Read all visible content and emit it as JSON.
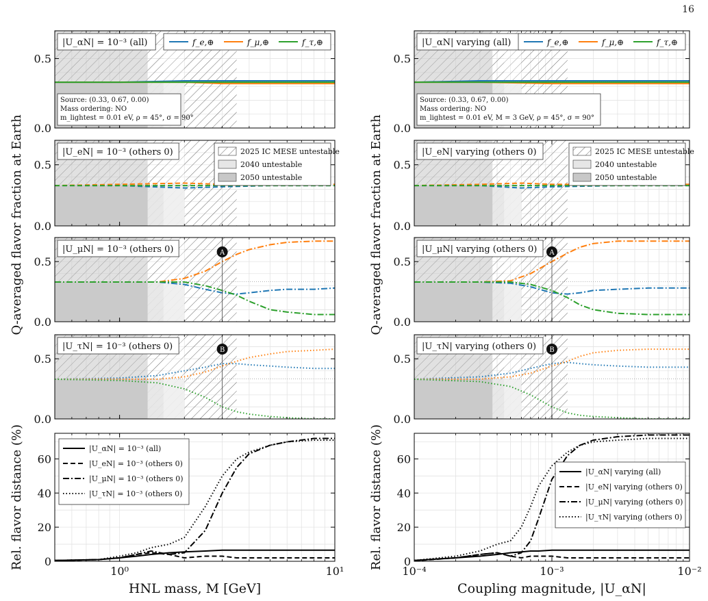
{
  "page_number": "16",
  "colors": {
    "e": "#1f77b4",
    "mu": "#ff7f0e",
    "tau": "#2ca02c",
    "hatch": "#555555",
    "shade2040": "#e6e6e6",
    "shade2050": "#c8c8c8"
  },
  "columns": [
    {
      "ylabel_flavor": "Q-averaged flavor fraction at Earth",
      "ylabel_distance": "Rel. flavor distance (%)",
      "xlabel": "HNL mass, M [GeV]",
      "xscale": "log",
      "xlim": [
        0.5,
        10
      ],
      "xticks": [
        {
          "v": 1,
          "label": "10⁰"
        },
        {
          "v": 10,
          "label": "10¹"
        }
      ],
      "markers": {
        "A": 3.0,
        "B": 3.0
      },
      "source_box": [
        "Source: (0.33, 0.67, 0.00)",
        "Mass ordering: NO",
        "m_lightest = 0.01 eV, ρ = 45°, σ = 90°"
      ],
      "regions": {
        "ic2025": [
          0.5,
          3.5
        ],
        "u2040": [
          0.5,
          2.0
        ],
        "u2050": [
          0.5,
          1.35
        ],
        "light": [
          1.6,
          2.0
        ]
      },
      "panels": [
        {
          "label": "|U_αN| = 10⁻³ (all)",
          "ylim": [
            0,
            0.7
          ],
          "yticks": [
            0.0,
            0.5
          ],
          "style": "solid",
          "chart_data": {
            "type": "line",
            "x": [
              0.5,
              1,
              2,
              3,
              5,
              10
            ],
            "series": [
              {
                "name": "f_e,⊕",
                "values": [
                  0.33,
                  0.33,
                  0.34,
                  0.34,
                  0.34,
                  0.34
                ]
              },
              {
                "name": "f_μ,⊕",
                "values": [
                  0.33,
                  0.33,
                  0.33,
                  0.32,
                  0.32,
                  0.32
                ]
              },
              {
                "name": "f_τ,⊕",
                "values": [
                  0.33,
                  0.33,
                  0.33,
                  0.33,
                  0.33,
                  0.33
                ]
              }
            ]
          }
        },
        {
          "label": "|U_eN| = 10⁻³ (others 0)",
          "ylim": [
            0,
            0.7
          ],
          "yticks": [
            0.0,
            0.5
          ],
          "style": "dashed",
          "chart_data": {
            "type": "line",
            "x": [
              0.5,
              1,
              2,
              3,
              5,
              10
            ],
            "series": [
              {
                "name": "f_e,⊕",
                "values": [
                  0.33,
                  0.33,
                  0.31,
                  0.32,
                  0.33,
                  0.33
                ]
              },
              {
                "name": "f_μ,⊕",
                "values": [
                  0.33,
                  0.34,
                  0.35,
                  0.34,
                  0.34,
                  0.34
                ]
              },
              {
                "name": "f_τ,⊕",
                "values": [
                  0.33,
                  0.33,
                  0.33,
                  0.33,
                  0.33,
                  0.33
                ]
              }
            ]
          }
        },
        {
          "label": "|U_μN| = 10⁻³ (others 0)",
          "ylim": [
            0,
            0.7
          ],
          "yticks": [
            0.0,
            0.5
          ],
          "style": "dashdot",
          "chart_data": {
            "type": "line",
            "x": [
              0.5,
              1,
              1.5,
              2,
              2.5,
              3,
              3.5,
              4,
              5,
              6,
              8,
              10
            ],
            "series": [
              {
                "name": "f_e,⊕",
                "values": [
                  0.33,
                  0.33,
                  0.33,
                  0.31,
                  0.27,
                  0.24,
                  0.23,
                  0.24,
                  0.26,
                  0.27,
                  0.27,
                  0.28
                ]
              },
              {
                "name": "f_μ,⊕",
                "values": [
                  0.33,
                  0.33,
                  0.33,
                  0.36,
                  0.42,
                  0.5,
                  0.56,
                  0.6,
                  0.64,
                  0.66,
                  0.67,
                  0.67
                ]
              },
              {
                "name": "f_τ,⊕",
                "values": [
                  0.33,
                  0.33,
                  0.33,
                  0.33,
                  0.3,
                  0.26,
                  0.22,
                  0.17,
                  0.1,
                  0.08,
                  0.06,
                  0.06
                ]
              }
            ]
          }
        },
        {
          "label": "|U_τN| = 10⁻³ (others 0)",
          "ylim": [
            0,
            0.7
          ],
          "yticks": [
            0.0,
            0.5
          ],
          "style": "dotted",
          "chart_data": {
            "type": "line",
            "x": [
              0.5,
              1,
              1.5,
              2,
              2.5,
              3,
              3.5,
              4,
              5,
              6,
              8,
              10
            ],
            "series": [
              {
                "name": "f_e,⊕",
                "values": [
                  0.33,
                  0.34,
                  0.36,
                  0.4,
                  0.43,
                  0.46,
                  0.46,
                  0.45,
                  0.44,
                  0.43,
                  0.42,
                  0.42
                ]
              },
              {
                "name": "f_μ,⊕",
                "values": [
                  0.33,
                  0.33,
                  0.33,
                  0.35,
                  0.39,
                  0.44,
                  0.48,
                  0.51,
                  0.54,
                  0.56,
                  0.57,
                  0.58
                ]
              },
              {
                "name": "f_τ,⊕",
                "values": [
                  0.33,
                  0.32,
                  0.3,
                  0.25,
                  0.18,
                  0.1,
                  0.06,
                  0.04,
                  0.02,
                  0.01,
                  0.0,
                  0.0
                ]
              }
            ]
          }
        },
        {
          "type": "distance",
          "ylim": [
            0,
            75
          ],
          "yticks": [
            0,
            20,
            40,
            60
          ],
          "chart_data": {
            "type": "line",
            "x": [
              0.5,
              0.8,
              1,
              1.2,
              1.4,
              1.7,
              2,
              2.5,
              3,
              3.5,
              4,
              5,
              6,
              8,
              10
            ],
            "series": [
              {
                "name": "|U_αN| = 10⁻³ (all)",
                "style": "solid",
                "values": [
                  0.5,
                  1,
                  2,
                  3,
                  4,
                  5,
                  5.5,
                  6,
                  6.5,
                  6.5,
                  6.5,
                  6.5,
                  6.5,
                  6.5,
                  6.5
                ]
              },
              {
                "name": "|U_eN| = 10⁻³ (others 0)",
                "style": "dashed",
                "values": [
                  0.3,
                  1,
                  2,
                  4,
                  5,
                  4,
                  2,
                  3,
                  3,
                  2,
                  2,
                  2,
                  2,
                  2,
                  2
                ]
              },
              {
                "name": "|U_μN| = 10⁻³ (others 0)",
                "style": "dashdot",
                "values": [
                  0.5,
                  1,
                  2,
                  4,
                  6,
                  4,
                  5,
                  18,
                  40,
                  55,
                  63,
                  68,
                  70,
                  72,
                  72
                ]
              },
              {
                "name": "|U_τN| = 10⁻³ (others 0)",
                "style": "dotted",
                "values": [
                  0.5,
                  1,
                  3,
                  5,
                  8,
                  10,
                  14,
                  32,
                  50,
                  60,
                  64,
                  68,
                  70,
                  71,
                  71
                ]
              }
            ]
          }
        }
      ]
    },
    {
      "ylabel_flavor": "Q-averaged flavor fraction at Earth",
      "ylabel_distance": "Rel. flavor distance (%)",
      "xlabel": "Coupling magnitude, |U_αN|",
      "xscale": "log",
      "xlim": [
        0.0001,
        0.01
      ],
      "xticks": [
        {
          "v": 0.0001,
          "label": "10⁻⁴"
        },
        {
          "v": 0.001,
          "label": "10⁻³"
        },
        {
          "v": 0.01,
          "label": "10⁻²"
        }
      ],
      "markers": {
        "A": 0.001,
        "B": 0.001
      },
      "source_box": [
        "Source: (0.33, 0.67, 0.00)",
        "Mass ordering: NO",
        "m_lightest = 0.01 eV, M = 3 GeV, ρ = 45°, σ = 90°"
      ],
      "regions": {
        "ic2025": [
          0.0001,
          0.0013
        ],
        "u2040": [
          0.0001,
          0.0006
        ],
        "u2050": [
          0.0001,
          0.00037
        ],
        "light": [
          0.00045,
          0.0006
        ]
      },
      "panels": [
        {
          "label": "|U_αN| varying (all)",
          "ylim": [
            0,
            0.7
          ],
          "yticks": [
            0.0,
            0.5
          ],
          "style": "solid",
          "chart_data": {
            "type": "line",
            "x": [
              0.0001,
              0.0003,
              0.001,
              0.003,
              0.01
            ],
            "series": [
              {
                "name": "f_e,⊕",
                "values": [
                  0.33,
                  0.34,
                  0.34,
                  0.34,
                  0.34
                ]
              },
              {
                "name": "f_μ,⊕",
                "values": [
                  0.33,
                  0.33,
                  0.32,
                  0.32,
                  0.32
                ]
              },
              {
                "name": "f_τ,⊕",
                "values": [
                  0.33,
                  0.33,
                  0.33,
                  0.33,
                  0.33
                ]
              }
            ]
          }
        },
        {
          "label": "|U_eN| varying (others 0)",
          "ylim": [
            0,
            0.7
          ],
          "yticks": [
            0.0,
            0.5
          ],
          "style": "dashed",
          "chart_data": {
            "type": "line",
            "x": [
              0.0001,
              0.0003,
              0.0006,
              0.001,
              0.003,
              0.01
            ],
            "series": [
              {
                "name": "f_e,⊕",
                "values": [
                  0.33,
                  0.33,
                  0.31,
                  0.32,
                  0.33,
                  0.33
                ]
              },
              {
                "name": "f_μ,⊕",
                "values": [
                  0.33,
                  0.34,
                  0.35,
                  0.34,
                  0.34,
                  0.34
                ]
              },
              {
                "name": "f_τ,⊕",
                "values": [
                  0.33,
                  0.33,
                  0.33,
                  0.33,
                  0.33,
                  0.33
                ]
              }
            ]
          }
        },
        {
          "label": "|U_μN| varying (others 0)",
          "ylim": [
            0,
            0.7
          ],
          "yticks": [
            0.0,
            0.5
          ],
          "style": "dashdot",
          "chart_data": {
            "type": "line",
            "x": [
              0.0001,
              0.0003,
              0.0005,
              0.0007,
              0.001,
              0.0013,
              0.0016,
              0.002,
              0.003,
              0.005,
              0.01
            ],
            "series": [
              {
                "name": "f_e,⊕",
                "values": [
                  0.33,
                  0.33,
                  0.32,
                  0.29,
                  0.24,
                  0.23,
                  0.24,
                  0.26,
                  0.27,
                  0.28,
                  0.28
                ]
              },
              {
                "name": "f_μ,⊕",
                "values": [
                  0.33,
                  0.33,
                  0.34,
                  0.4,
                  0.5,
                  0.57,
                  0.62,
                  0.65,
                  0.67,
                  0.67,
                  0.67
                ]
              },
              {
                "name": "f_τ,⊕",
                "values": [
                  0.33,
                  0.33,
                  0.33,
                  0.31,
                  0.26,
                  0.2,
                  0.14,
                  0.1,
                  0.07,
                  0.06,
                  0.06
                ]
              }
            ]
          }
        },
        {
          "label": "|U_τN| varying (others 0)",
          "ylim": [
            0,
            0.7
          ],
          "yticks": [
            0.0,
            0.5
          ],
          "style": "dotted",
          "chart_data": {
            "type": "line",
            "x": [
              0.0001,
              0.0003,
              0.0005,
              0.0007,
              0.001,
              0.0013,
              0.0016,
              0.002,
              0.003,
              0.005,
              0.01
            ],
            "series": [
              {
                "name": "f_e,⊕",
                "values": [
                  0.33,
                  0.35,
                  0.38,
                  0.42,
                  0.46,
                  0.47,
                  0.46,
                  0.45,
                  0.44,
                  0.43,
                  0.43
                ]
              },
              {
                "name": "f_μ,⊕",
                "values": [
                  0.33,
                  0.33,
                  0.35,
                  0.38,
                  0.44,
                  0.48,
                  0.52,
                  0.55,
                  0.57,
                  0.58,
                  0.58
                ]
              },
              {
                "name": "f_τ,⊕",
                "values": [
                  0.33,
                  0.31,
                  0.27,
                  0.2,
                  0.1,
                  0.05,
                  0.03,
                  0.02,
                  0.01,
                  0.0,
                  0.0
                ]
              }
            ]
          }
        },
        {
          "type": "distance",
          "ylim": [
            0,
            75
          ],
          "yticks": [
            0,
            20,
            40,
            60
          ],
          "chart_data": {
            "type": "line",
            "x": [
              0.0001,
              0.0002,
              0.0003,
              0.0004,
              0.0005,
              0.0006,
              0.0007,
              0.0008,
              0.001,
              0.0013,
              0.0016,
              0.002,
              0.003,
              0.005,
              0.01
            ],
            "series": [
              {
                "name": "|U_αN| varying (all)",
                "style": "solid",
                "values": [
                  0.5,
                  2,
                  3,
                  4,
                  5,
                  5.5,
                  6,
                  6,
                  6.5,
                  6.5,
                  6.5,
                  6.5,
                  6.5,
                  6.5,
                  6.5
                ]
              },
              {
                "name": "|U_eN| varying (others 0)",
                "style": "dashed",
                "values": [
                  0.3,
                  2,
                  4,
                  5,
                  3,
                  2,
                  3,
                  3,
                  3,
                  2,
                  2,
                  2,
                  2,
                  2,
                  2
                ]
              },
              {
                "name": "|U_μN| varying (others 0)",
                "style": "dashdot",
                "values": [
                  0.5,
                  2,
                  4,
                  5,
                  3,
                  5,
                  12,
                  25,
                  48,
                  62,
                  68,
                  71,
                  73,
                  74,
                  74
                ]
              },
              {
                "name": "|U_τN| varying (others 0)",
                "style": "dotted",
                "values": [
                  0.5,
                  3,
                  6,
                  10,
                  12,
                  20,
                  32,
                  44,
                  56,
                  64,
                  68,
                  70,
                  71,
                  72,
                  72
                ]
              }
            ]
          }
        }
      ]
    }
  ],
  "flavor_legend": [
    "f_e,⊕",
    "f_μ,⊕",
    "f_τ,⊕"
  ],
  "region_legend": [
    "2025 IC MESE untestable",
    "2040 untestable",
    "2050 untestable"
  ],
  "marker_labels": [
    "A",
    "B"
  ]
}
